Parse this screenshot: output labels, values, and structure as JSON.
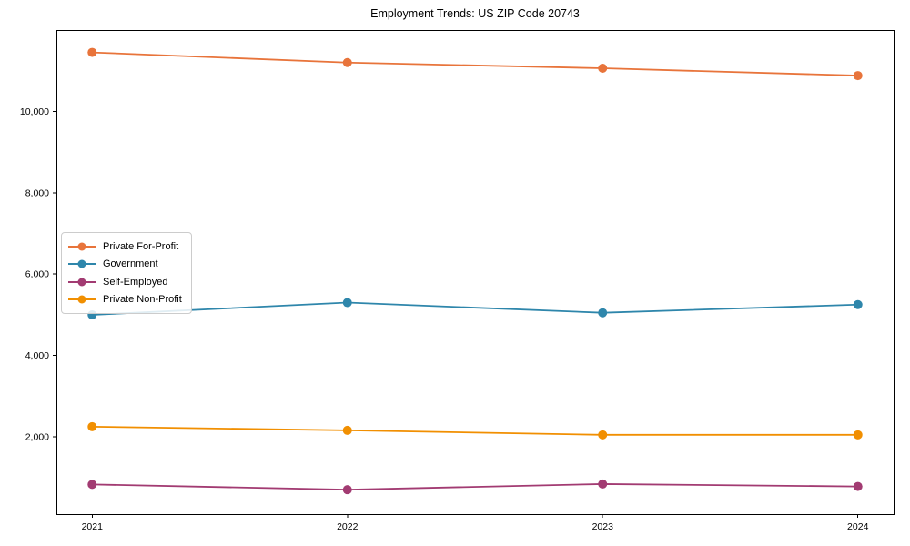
{
  "page": {
    "background": "#ffffff"
  },
  "chart_data": {
    "type": "line",
    "title": "Employment Trends: US ZIP Code 20743",
    "xlabel": "",
    "ylabel": "",
    "x": [
      2021,
      2022,
      2023,
      2024
    ],
    "x_tick_labels": [
      "2021",
      "2022",
      "2023",
      "2024"
    ],
    "y_tick_values": [
      2000,
      4000,
      6000,
      8000,
      10000
    ],
    "y_tick_labels": [
      "2,000",
      "4,000",
      "6,000",
      "8,000",
      "10,000"
    ],
    "xlim": [
      2020.86,
      2024.14
    ],
    "ylim": [
      100,
      12000
    ],
    "grid": false,
    "legend_position": "center-left",
    "frame_color": "#000000",
    "series": [
      {
        "name": "Private For-Profit",
        "color": "#E8743B",
        "values": [
          11450,
          11200,
          11060,
          10880
        ]
      },
      {
        "name": "Government",
        "color": "#2E86AB",
        "values": [
          5000,
          5300,
          5050,
          5250
        ]
      },
      {
        "name": "Self-Employed",
        "color": "#A23B72",
        "values": [
          830,
          700,
          840,
          780
        ]
      },
      {
        "name": "Private Non-Profit",
        "color": "#F18F01",
        "values": [
          2250,
          2160,
          2050,
          2050
        ]
      }
    ]
  }
}
